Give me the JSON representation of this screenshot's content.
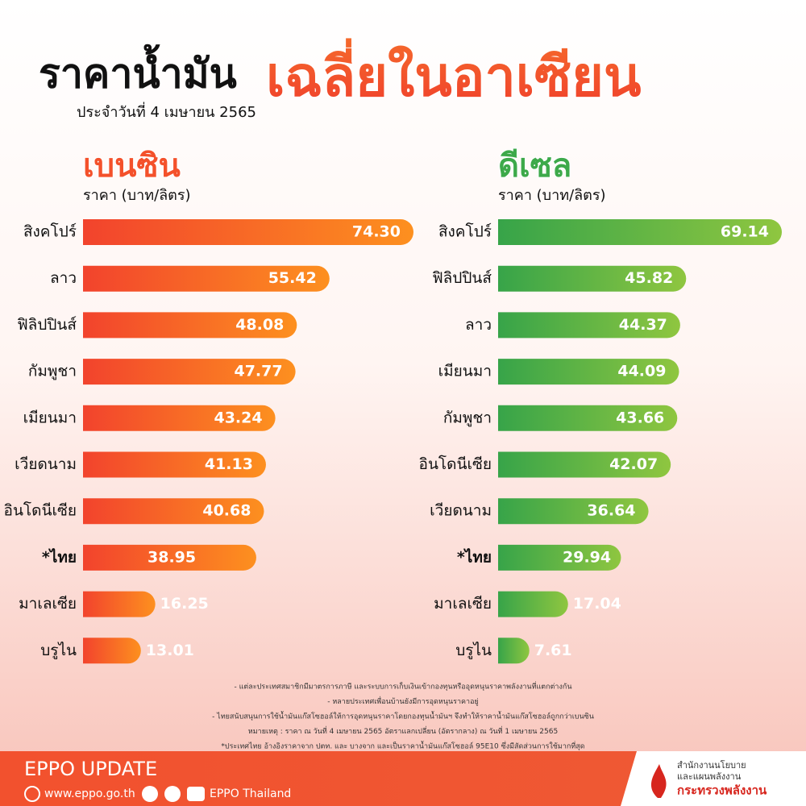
{
  "header": {
    "title_part1": "ราคาน้ำมัน",
    "title_part2": "เฉลี่ยในอาเซียน",
    "subtitle": "ประจำวันที่ 4 เมษายน 2565"
  },
  "chart_data": [
    {
      "type": "bar",
      "title": "เบนซิน",
      "axis_label": "ราคา (บาท/ลิตร)",
      "color": "#f2432d",
      "color_end": "#fd901f",
      "title_color": "#f4512b",
      "categories": [
        "สิงคโปร์",
        "ลาว",
        "ฟิลิปปินส์",
        "กัมพูชา",
        "เมียนมา",
        "เวียดนาม",
        "อินโดนีเซีย",
        "*ไทย",
        "มาเลเซีย",
        "บรูไน"
      ],
      "values": [
        74.3,
        55.42,
        48.08,
        47.77,
        43.24,
        41.13,
        40.68,
        38.95,
        16.25,
        13.01
      ],
      "value_labels": [
        "74.30",
        "55.42",
        "48.08",
        "47.77",
        "43.24",
        "41.13",
        "40.68",
        "38.95",
        "16.25",
        "13.01"
      ]
    },
    {
      "type": "bar",
      "title": "ดีเซล",
      "axis_label": "ราคา (บาท/ลิตร)",
      "color": "#37a449",
      "color_end": "#8fc640",
      "title_color": "#3da94a",
      "categories": [
        "สิงคโปร์",
        "ฟิลิปปินส์",
        "ลาว",
        "เมียนมา",
        "กัมพูชา",
        "อินโดนีเซีย",
        "เวียดนาม",
        "*ไทย",
        "มาเลเซีย",
        "บรูไน"
      ],
      "values": [
        69.14,
        45.82,
        44.37,
        44.09,
        43.66,
        42.07,
        36.64,
        29.94,
        17.04,
        7.61
      ],
      "value_labels": [
        "69.14",
        "45.82",
        "44.37",
        "44.09",
        "43.66",
        "42.07",
        "36.64",
        "29.94",
        "17.04",
        "7.61"
      ]
    }
  ],
  "notes": [
    "- แต่ละประเทศสมาชิกมีมาตรการภาษี และระบบการเก็บเงินเข้ากองทุนหรืออุดหนุนราคาพลังงานที่แตกต่างกัน",
    "- หลายประเทศเพื่อนบ้านยังมีการอุดหนุนราคาอยู่",
    "- ไทยสนับสนุนการใช้น้ำมันแก๊สโซฮอล์ให้การอุดหนุนราคาโดยกองทุนน้ำมันฯ จึงทำให้ราคาน้ำมันแก๊สโซฮอล์ถูกกว่าเบนซิน",
    "หมายเหตุ : ราคา ณ วันที่ 4 เมษายน 2565 อัตราแลกเปลี่ยน (อัตรากลาง) ณ วันที่ 1 เมษายน 2565",
    "*ประเทศไทย อ้างอิงราคาจาก ปตท. และ บางจาก และเป็นราคาน้ำมันแก๊สโซฮอล์ 95E10 ซึ่งมีสัดส่วนการใช้มากที่สุด"
  ],
  "footer": {
    "brand": "EPPO UPDATE",
    "website": "www.eppo.go.th",
    "social": "EPPO Thailand",
    "org_line1": "สำนักงานนโยบาย",
    "org_line2": "และแผนพลังงาน",
    "org_line3": "กระทรวงพลังงาน"
  }
}
